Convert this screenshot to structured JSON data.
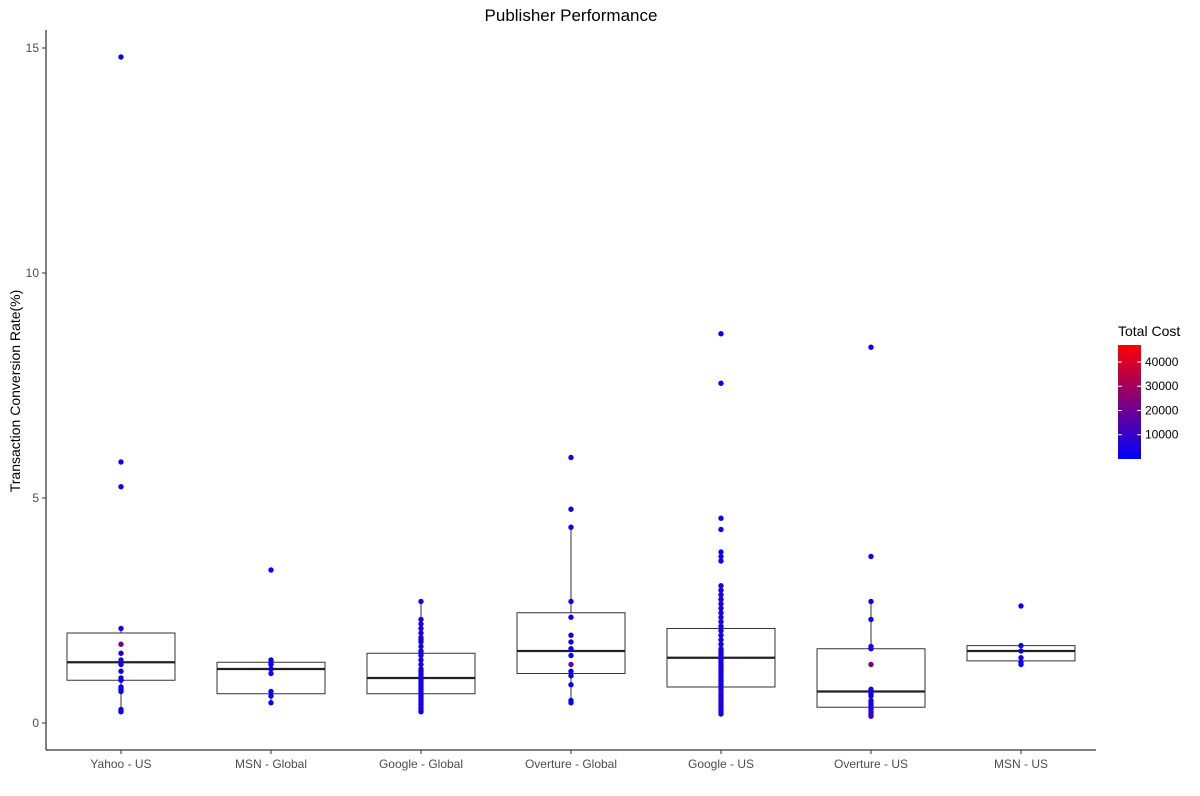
{
  "chart_data": {
    "type": "boxplot",
    "title": "Publisher Performance",
    "xlabel": "",
    "ylabel": "Transaction Conversion Rate(%)",
    "ylim": [
      -0.6,
      15.4
    ],
    "y_ticks": [
      0,
      5,
      10,
      15
    ],
    "categories": [
      "Yahoo - US",
      "MSN - Global",
      "Google - Global",
      "Overture - Global",
      "Google - US",
      "Overture - US",
      "MSN - US"
    ],
    "boxes": [
      {
        "category": "Yahoo - US",
        "q1": 0.95,
        "median": 1.35,
        "q3": 2.0,
        "whisker_low": 0.25,
        "whisker_high": 2.1
      },
      {
        "category": "MSN - Global",
        "q1": 0.65,
        "median": 1.2,
        "q3": 1.35,
        "whisker_low": 0.45,
        "whisker_high": 1.4
      },
      {
        "category": "Google - Global",
        "q1": 0.65,
        "median": 1.0,
        "q3": 1.55,
        "whisker_low": 0.25,
        "whisker_high": 2.7
      },
      {
        "category": "Overture - Global",
        "q1": 1.1,
        "median": 1.6,
        "q3": 2.45,
        "whisker_low": 0.45,
        "whisker_high": 4.4
      },
      {
        "category": "Google - US",
        "q1": 0.8,
        "median": 1.45,
        "q3": 2.1,
        "whisker_low": 0.2,
        "whisker_high": 3.05
      },
      {
        "category": "Overture - US",
        "q1": 0.35,
        "median": 0.7,
        "q3": 1.65,
        "whisker_low": 0.15,
        "whisker_high": 2.7
      },
      {
        "category": "MSN - US",
        "q1": 1.38,
        "median": 1.6,
        "q3": 1.72,
        "whisker_low": 1.3,
        "whisker_high": 1.72
      }
    ],
    "points": [
      {
        "category": "Yahoo - US",
        "values": [
          14.8,
          5.8,
          5.25,
          2.1,
          1.75,
          1.55,
          1.4,
          1.3,
          1.15,
          1.0,
          0.95,
          0.8,
          0.75,
          0.7,
          0.3,
          0.25
        ],
        "costs": [
          1500,
          1500,
          1500,
          1500,
          22000,
          6000,
          6000,
          3000,
          1500,
          1500,
          1500,
          3000,
          1500,
          1500,
          1500,
          1500
        ]
      },
      {
        "category": "MSN - Global",
        "values": [
          3.4,
          1.4,
          1.35,
          1.3,
          1.2,
          1.1,
          0.7,
          0.6,
          0.45
        ],
        "costs": [
          1500,
          1500,
          4000,
          1500,
          1500,
          1500,
          1500,
          1500,
          1500
        ]
      },
      {
        "category": "Google - Global",
        "values": [
          2.7,
          2.3,
          2.2,
          2.1,
          2.0,
          1.9,
          1.85,
          1.8,
          1.7,
          1.6,
          1.55,
          1.5,
          1.4,
          1.3,
          1.2,
          1.15,
          1.1,
          1.05,
          1.0,
          0.95,
          0.9,
          0.85,
          0.8,
          0.75,
          0.7,
          0.65,
          0.6,
          0.55,
          0.5,
          0.45,
          0.4,
          0.35,
          0.3,
          0.25
        ],
        "costs": [
          6000,
          3000,
          6000,
          3000,
          6000,
          3000,
          6000,
          3000,
          6000,
          3000,
          6000,
          3000,
          6000,
          3000,
          6000,
          3000,
          6000,
          3000,
          6000,
          3000,
          6000,
          3000,
          6000,
          3000,
          6000,
          3000,
          6000,
          3000,
          6000,
          3000,
          6000,
          3000,
          6000,
          3000
        ]
      },
      {
        "category": "Overture - Global",
        "values": [
          5.9,
          4.75,
          4.35,
          2.7,
          2.35,
          1.95,
          1.8,
          1.65,
          1.5,
          1.3,
          1.15,
          1.05,
          0.85,
          0.5,
          0.45
        ],
        "costs": [
          1500,
          1500,
          1500,
          1500,
          1500,
          1500,
          3000,
          1500,
          3000,
          22000,
          1500,
          3000,
          1500,
          1500,
          1500
        ]
      },
      {
        "category": "Google - US",
        "values": [
          8.65,
          7.55,
          4.55,
          4.3,
          3.8,
          3.7,
          3.6,
          3.05,
          2.95,
          2.85,
          2.75,
          2.65,
          2.55,
          2.45,
          2.35,
          2.25,
          2.15,
          2.05,
          1.95,
          1.85,
          1.75,
          1.65,
          1.6,
          1.55,
          1.5,
          1.45,
          1.4,
          1.35,
          1.3,
          1.25,
          1.2,
          1.15,
          1.1,
          1.05,
          1.0,
          0.95,
          0.9,
          0.85,
          0.8,
          0.75,
          0.7,
          0.65,
          0.6,
          0.55,
          0.5,
          0.45,
          0.4,
          0.35,
          0.3,
          0.25,
          0.2
        ],
        "costs": [
          1500,
          1500,
          1500,
          3000,
          1500,
          3000,
          1500,
          6000,
          3000,
          6000,
          3000,
          6000,
          3000,
          6000,
          3000,
          6000,
          3000,
          6000,
          3000,
          6000,
          3000,
          6000,
          3000,
          6000,
          3000,
          6000,
          3000,
          6000,
          3000,
          6000,
          3000,
          6000,
          3000,
          6000,
          3000,
          6000,
          3000,
          6000,
          3000,
          6000,
          3000,
          12000,
          3000,
          6000,
          3000,
          6000,
          3000,
          6000,
          3000,
          6000,
          3000
        ]
      },
      {
        "category": "Overture - US",
        "values": [
          8.35,
          3.7,
          2.7,
          2.3,
          1.7,
          1.65,
          1.3,
          0.75,
          0.7,
          0.65,
          0.6,
          0.5,
          0.45,
          0.4,
          0.35,
          0.3,
          0.25,
          0.2,
          0.15
        ],
        "costs": [
          1500,
          1500,
          1500,
          1500,
          3000,
          6000,
          22000,
          6000,
          3000,
          6000,
          3000,
          6000,
          3000,
          6000,
          3000,
          6000,
          12000,
          6000,
          12000
        ]
      },
      {
        "category": "MSN - US",
        "values": [
          2.6,
          1.72,
          1.6,
          1.45,
          1.35,
          1.3
        ],
        "costs": [
          1500,
          1500,
          3000,
          6000,
          3000,
          1500
        ]
      }
    ],
    "legend": {
      "title": "Total Cost",
      "ticks": [
        10000,
        20000,
        30000,
        40000
      ],
      "labels": [
        "10000",
        "20000",
        "30000",
        "40000"
      ],
      "min": 0,
      "max": 47000,
      "low_color": "#0000ff",
      "high_color": "#ff0000",
      "placement": "right"
    },
    "grid": false
  }
}
